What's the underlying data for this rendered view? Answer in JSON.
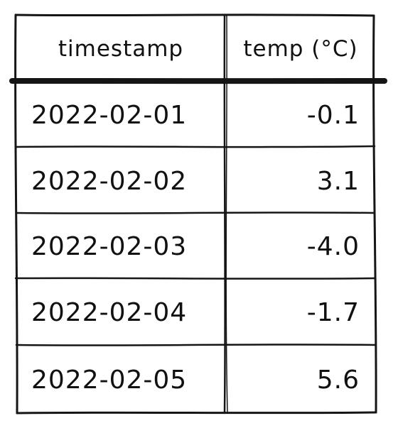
{
  "table": {
    "headers": [
      "timestamp",
      "temp (°C)"
    ],
    "rows": [
      [
        "2022-02-01",
        "-0.1"
      ],
      [
        "2022-02-02",
        "3.1"
      ],
      [
        "2022-02-03",
        "-4.0"
      ],
      [
        "2022-02-04",
        "-1.7"
      ],
      [
        "2022-02-05",
        "5.6"
      ]
    ]
  },
  "colors": {
    "ink": "#151515",
    "background": "#ffffff"
  }
}
